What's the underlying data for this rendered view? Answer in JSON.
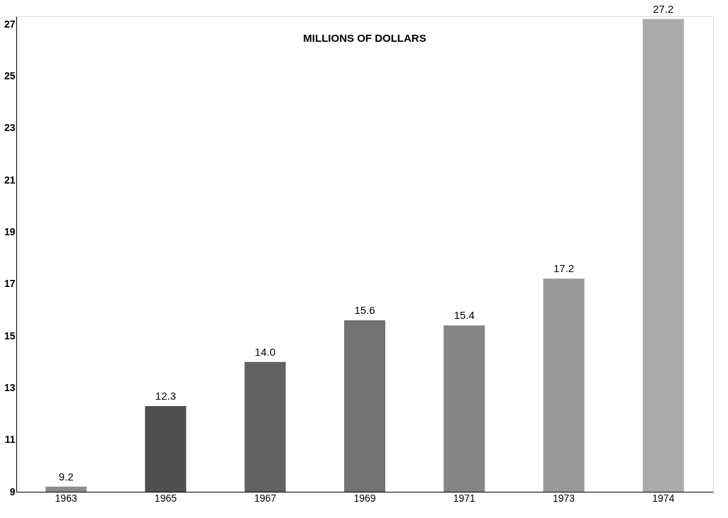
{
  "chart_data": {
    "type": "bar",
    "title": "MILLIONS OF DOLLARS",
    "categories": [
      "1963",
      "1965",
      "1967",
      "1969",
      "1971",
      "1973",
      "1974"
    ],
    "values": [
      9.2,
      12.3,
      14.0,
      15.6,
      15.4,
      17.2,
      27.2
    ],
    "colors": [
      "#8c8c8c",
      "#505050",
      "#626262",
      "#737373",
      "#858585",
      "#999999",
      "#ababab"
    ],
    "ylim": [
      9,
      27.3
    ],
    "yticks": [
      9,
      11,
      13,
      15,
      17,
      19,
      21,
      23,
      25,
      27
    ],
    "value_labels": [
      "9.2",
      "12.3",
      "14.0",
      "15.6",
      "15.4",
      "17.2",
      "27.2"
    ],
    "grid": false
  }
}
